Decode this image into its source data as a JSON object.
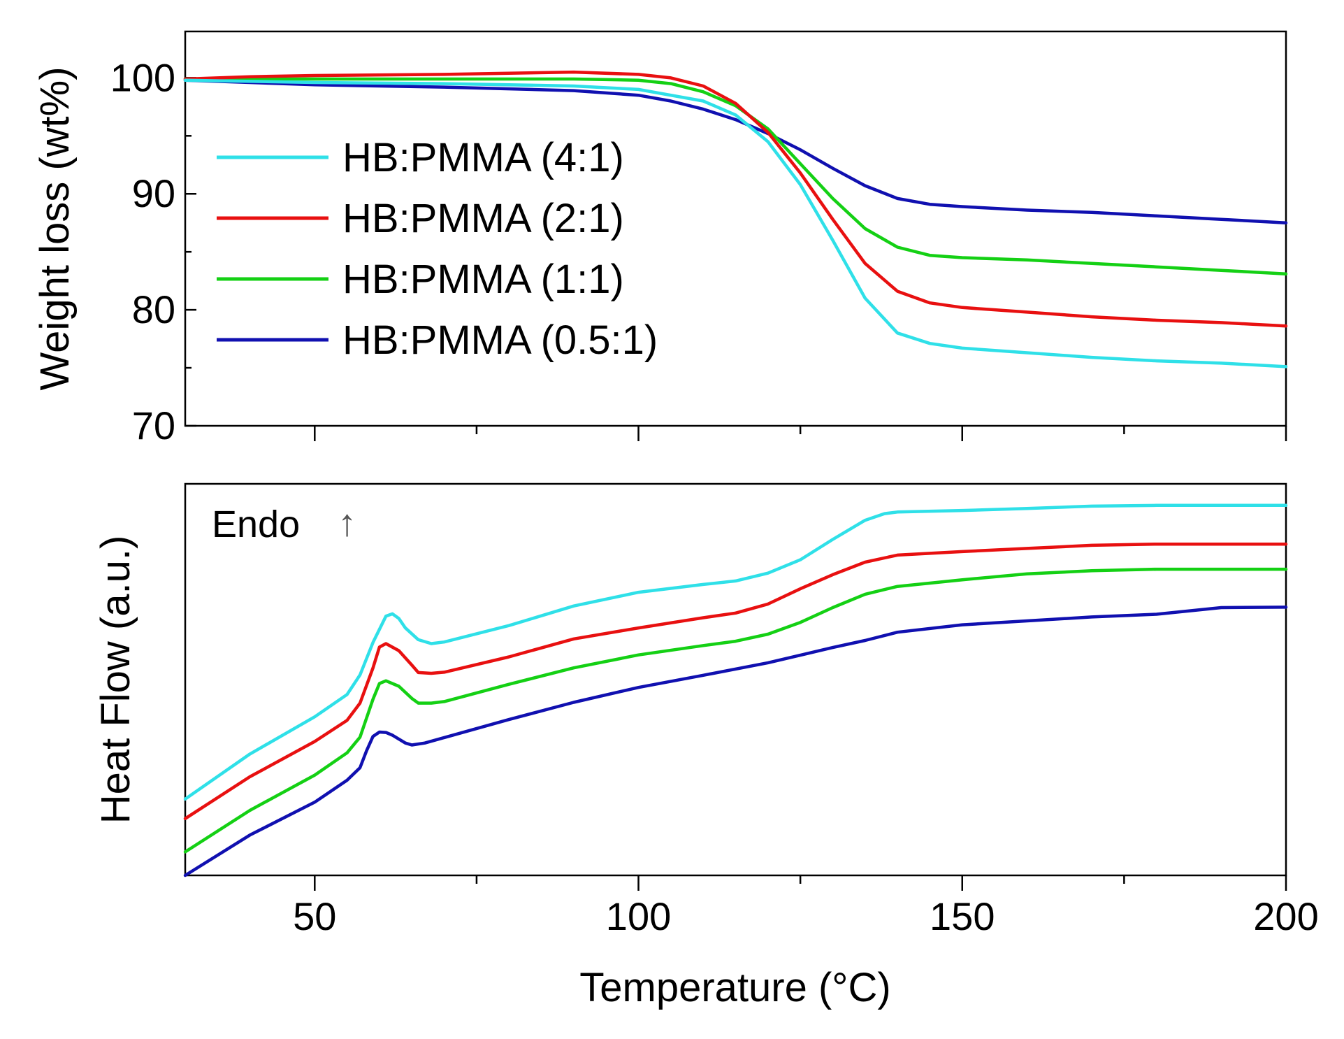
{
  "chart_data": [
    {
      "type": "line",
      "panel": "top",
      "title": "",
      "xlabel": "",
      "ylabel": "Weight loss (wt%)",
      "xlim": [
        30,
        200
      ],
      "ylim": [
        70,
        104
      ],
      "yticks": [
        70,
        80,
        90,
        100
      ],
      "xticks": [
        50,
        100,
        150,
        200
      ],
      "legend": "upper-left",
      "series": [
        {
          "name": "HB:PMMA (4:1)",
          "color": "#2fe0e8",
          "x": [
            30,
            50,
            70,
            90,
            100,
            110,
            115,
            120,
            125,
            130,
            135,
            140,
            145,
            150,
            160,
            170,
            180,
            190,
            200
          ],
          "y": [
            99.8,
            99.6,
            99.5,
            99.3,
            99.0,
            98.0,
            96.8,
            94.5,
            90.8,
            86.0,
            81.0,
            78.0,
            77.1,
            76.7,
            76.3,
            75.9,
            75.6,
            75.4,
            75.1
          ]
        },
        {
          "name": "HB:PMMA (2:1)",
          "color": "#e81010",
          "x": [
            30,
            40,
            50,
            70,
            90,
            100,
            105,
            110,
            115,
            120,
            125,
            130,
            135,
            140,
            145,
            150,
            160,
            170,
            180,
            190,
            200
          ],
          "y": [
            99.9,
            100.1,
            100.2,
            100.3,
            100.5,
            100.3,
            100.0,
            99.3,
            97.8,
            95.3,
            91.8,
            87.8,
            84.0,
            81.6,
            80.6,
            80.2,
            79.8,
            79.4,
            79.1,
            78.9,
            78.6
          ]
        },
        {
          "name": "HB:PMMA (1:1)",
          "color": "#14d014",
          "x": [
            30,
            50,
            70,
            90,
            100,
            105,
            110,
            115,
            120,
            125,
            130,
            135,
            140,
            145,
            150,
            160,
            170,
            180,
            190,
            200
          ],
          "y": [
            99.9,
            99.9,
            99.9,
            99.9,
            99.8,
            99.5,
            98.8,
            97.6,
            95.6,
            92.6,
            89.6,
            87.0,
            85.4,
            84.7,
            84.5,
            84.3,
            84.0,
            83.7,
            83.4,
            83.1
          ]
        },
        {
          "name": "HB:PMMA (0.5:1)",
          "color": "#1010b0",
          "x": [
            30,
            40,
            50,
            70,
            90,
            100,
            105,
            110,
            115,
            120,
            125,
            130,
            135,
            140,
            145,
            150,
            160,
            170,
            180,
            190,
            200
          ],
          "y": [
            99.8,
            99.6,
            99.4,
            99.2,
            98.9,
            98.5,
            98.0,
            97.3,
            96.4,
            95.2,
            93.8,
            92.2,
            90.7,
            89.6,
            89.1,
            88.9,
            88.6,
            88.4,
            88.1,
            87.8,
            87.5
          ]
        }
      ]
    },
    {
      "type": "line",
      "panel": "bottom",
      "title": "",
      "xlabel": "Temperature (°C)",
      "ylabel": "Heat Flow (a.u.)",
      "xlim": [
        30,
        200
      ],
      "ylim": [
        0,
        1
      ],
      "xticks": [
        50,
        100,
        150,
        200
      ],
      "annotation": "Endo",
      "annotation_arrow": "↑",
      "series": [
        {
          "name": "HB:PMMA (4:1)",
          "color": "#2fe0e8",
          "x": [
            30,
            40,
            50,
            55,
            57,
            59,
            61,
            62,
            63,
            64,
            66,
            68,
            70,
            80,
            90,
            100,
            110,
            115,
            120,
            125,
            130,
            135,
            138,
            140,
            150,
            160,
            170,
            180,
            190,
            200
          ],
          "y": [
            0.195,
            0.31,
            0.405,
            0.462,
            0.512,
            0.595,
            0.662,
            0.668,
            0.656,
            0.632,
            0.602,
            0.592,
            0.596,
            0.638,
            0.688,
            0.723,
            0.743,
            0.752,
            0.772,
            0.806,
            0.858,
            0.907,
            0.924,
            0.928,
            0.932,
            0.937,
            0.943,
            0.945,
            0.945,
            0.945
          ]
        },
        {
          "name": "HB:PMMA (2:1)",
          "color": "#e81010",
          "x": [
            30,
            40,
            50,
            55,
            57,
            59,
            60,
            61,
            63,
            65,
            66,
            68,
            70,
            80,
            90,
            100,
            110,
            115,
            120,
            125,
            130,
            135,
            140,
            150,
            160,
            170,
            180,
            190,
            200
          ],
          "y": [
            0.145,
            0.252,
            0.342,
            0.396,
            0.44,
            0.53,
            0.583,
            0.592,
            0.574,
            0.537,
            0.518,
            0.516,
            0.519,
            0.558,
            0.604,
            0.632,
            0.658,
            0.67,
            0.693,
            0.732,
            0.768,
            0.8,
            0.818,
            0.827,
            0.835,
            0.843,
            0.846,
            0.846,
            0.846
          ]
        },
        {
          "name": "HB:PMMA (1:1)",
          "color": "#14d014",
          "x": [
            30,
            40,
            50,
            55,
            57,
            59,
            60,
            61,
            63,
            65,
            66,
            68,
            70,
            80,
            90,
            100,
            110,
            115,
            120,
            125,
            130,
            135,
            140,
            150,
            160,
            170,
            180,
            190,
            200
          ],
          "y": [
            0.06,
            0.166,
            0.256,
            0.313,
            0.353,
            0.45,
            0.49,
            0.497,
            0.483,
            0.452,
            0.44,
            0.44,
            0.444,
            0.488,
            0.53,
            0.563,
            0.587,
            0.598,
            0.616,
            0.646,
            0.684,
            0.718,
            0.738,
            0.755,
            0.77,
            0.778,
            0.782,
            0.782,
            0.782
          ]
        },
        {
          "name": "HB:PMMA (0.5:1)",
          "color": "#1010b0",
          "x": [
            30,
            40,
            50,
            55,
            57,
            58,
            59,
            60,
            61,
            62,
            64,
            65,
            67,
            70,
            80,
            90,
            100,
            110,
            120,
            130,
            135,
            140,
            150,
            160,
            170,
            180,
            190,
            200
          ],
          "y": [
            0.0,
            0.103,
            0.187,
            0.243,
            0.275,
            0.318,
            0.355,
            0.366,
            0.365,
            0.358,
            0.338,
            0.333,
            0.338,
            0.352,
            0.398,
            0.442,
            0.48,
            0.511,
            0.543,
            0.582,
            0.6,
            0.621,
            0.64,
            0.65,
            0.66,
            0.667,
            0.684,
            0.685
          ]
        }
      ]
    }
  ]
}
